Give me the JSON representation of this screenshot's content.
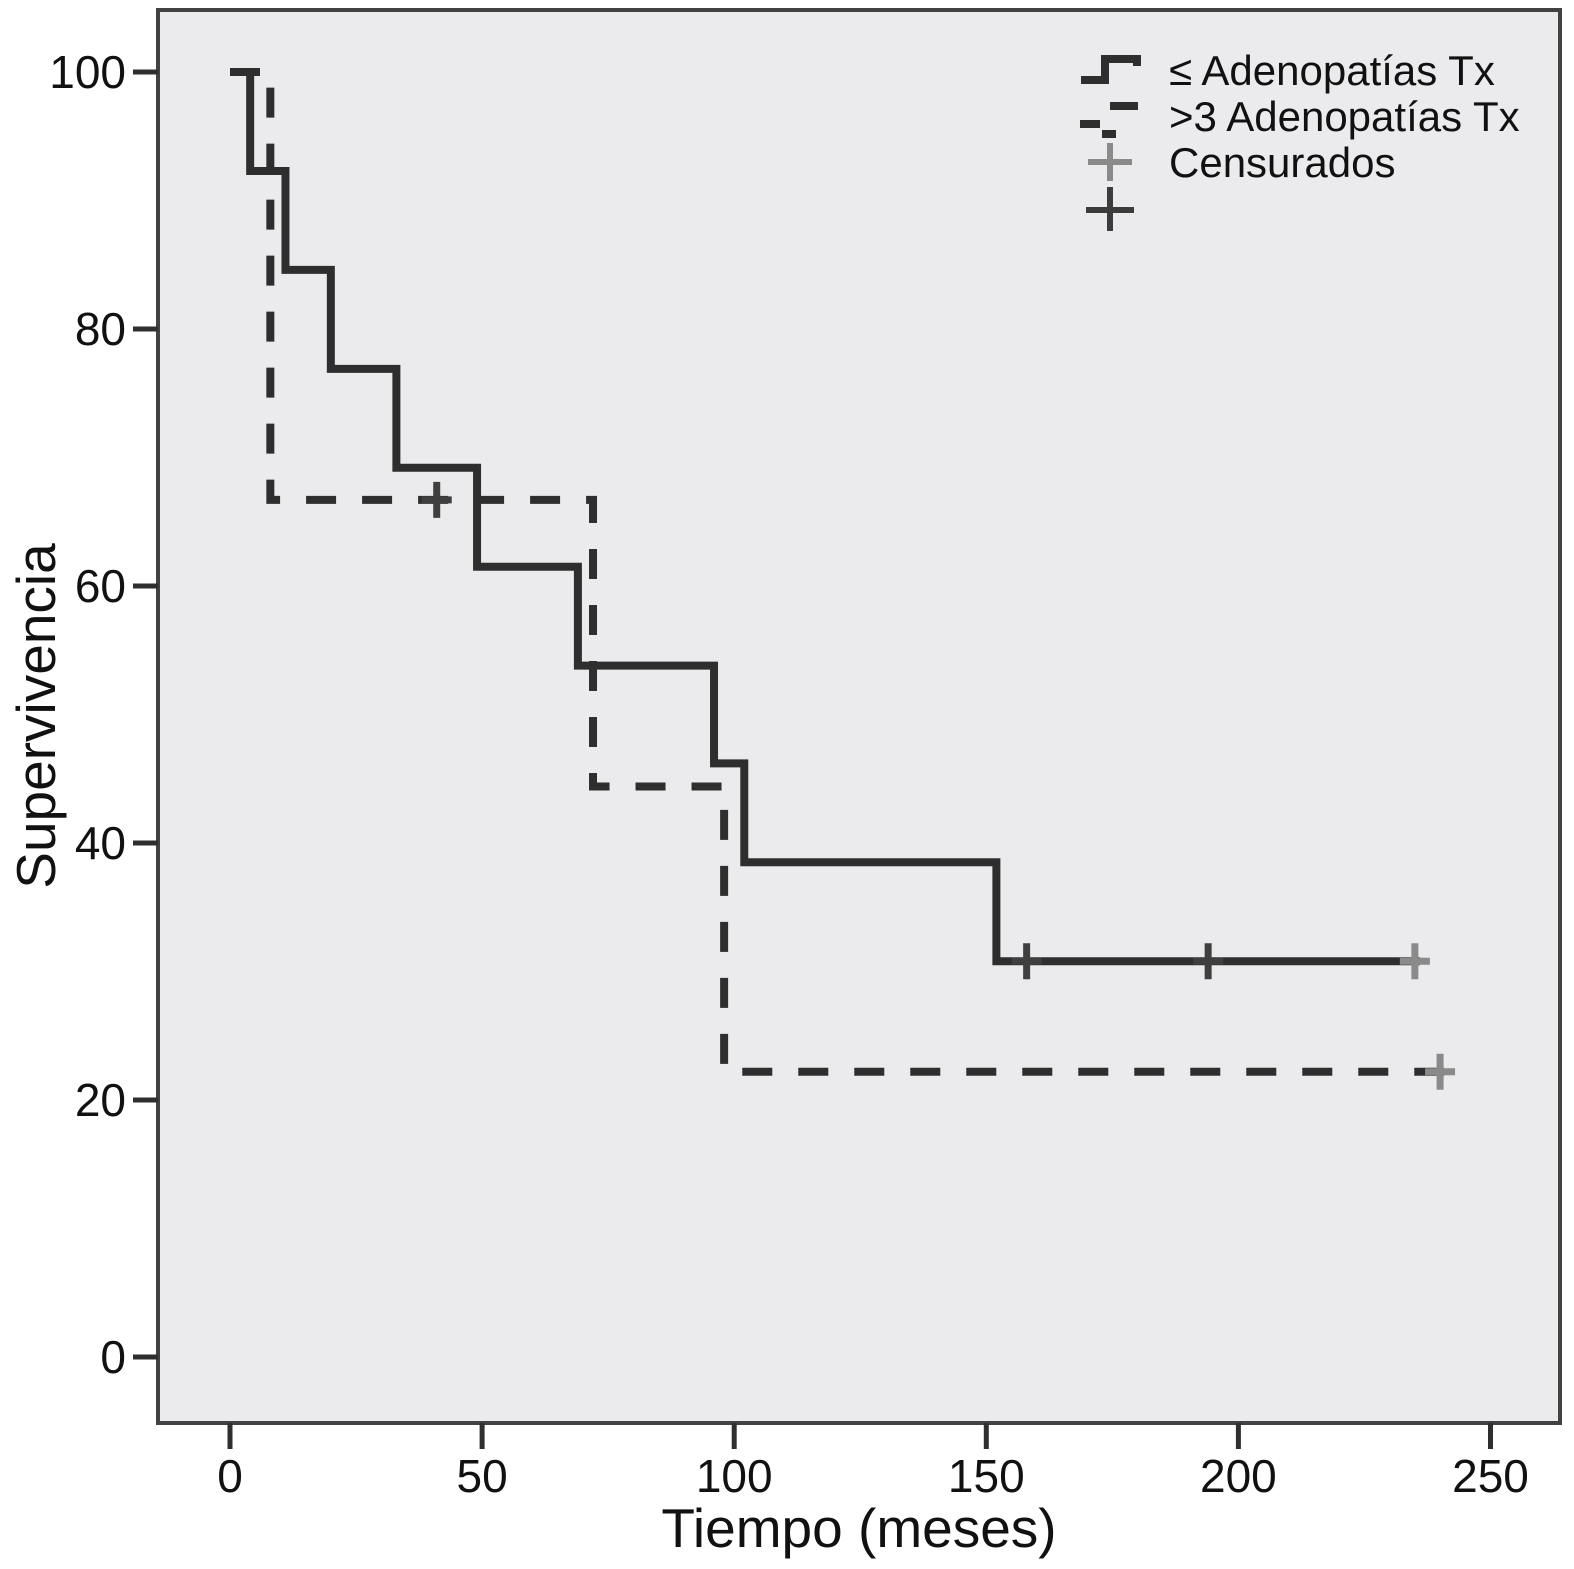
{
  "figure": {
    "y_axis_title": "Supervivencia",
    "x_axis_title": "Tiempo (meses)",
    "legend": {
      "items": [
        {
          "label": "≤ Adenopatías Tx",
          "symbol": "solid-step-line"
        },
        {
          "label": ">3 Adenopatías Tx",
          "symbol": "dashed-line"
        },
        {
          "label": "Censurados",
          "symbol": "plus-gray"
        },
        {
          "label": "",
          "symbol": "plus-dark"
        }
      ]
    }
  },
  "chart_data": {
    "type": "line",
    "subtype": "kaplan_meier_step",
    "title": "",
    "xlabel": "Tiempo (meses)",
    "ylabel": "Supervivencia",
    "x_ticks": [
      0,
      50,
      100,
      150,
      200,
      250
    ],
    "y_ticks": [
      100,
      80,
      60,
      40,
      20,
      0
    ],
    "xlim": [
      0,
      263
    ],
    "ylim": [
      0,
      100
    ],
    "grid": false,
    "legend_position": "top-right",
    "plot_bg": "#ebebed",
    "colors": {
      "line": "#2e2e2e",
      "censor_dark": "#3f3f3f",
      "censor_gray": "#8a8a8a",
      "border": "#424242",
      "tick": "#2f2f2f",
      "text": "#111111"
    },
    "series": [
      {
        "name": "≤ Adenopatías Tx",
        "style": "solid",
        "points": [
          [
            0,
            100
          ],
          [
            4,
            92.3
          ],
          [
            11,
            84.6
          ],
          [
            20,
            76.9
          ],
          [
            33,
            69.2
          ],
          [
            49,
            61.5
          ],
          [
            69,
            53.8
          ],
          [
            96,
            46.2
          ],
          [
            102,
            38.5
          ],
          [
            152,
            30.8
          ]
        ],
        "end_time": 236,
        "censored": [
          {
            "t": 158,
            "s": 30.8,
            "tone": "dark"
          },
          {
            "t": 194,
            "s": 30.8,
            "tone": "dark"
          },
          {
            "t": 235,
            "s": 30.8,
            "tone": "gray"
          }
        ]
      },
      {
        "name": ">3 Adenopatías Tx",
        "style": "dashed",
        "points": [
          [
            0,
            100
          ],
          [
            8,
            66.7
          ],
          [
            72,
            44.4
          ],
          [
            98,
            22.2
          ]
        ],
        "end_time": 241,
        "censored": [
          {
            "t": 41,
            "s": 66.7,
            "tone": "dark"
          },
          {
            "t": 240,
            "s": 22.2,
            "tone": "gray"
          }
        ]
      }
    ]
  }
}
